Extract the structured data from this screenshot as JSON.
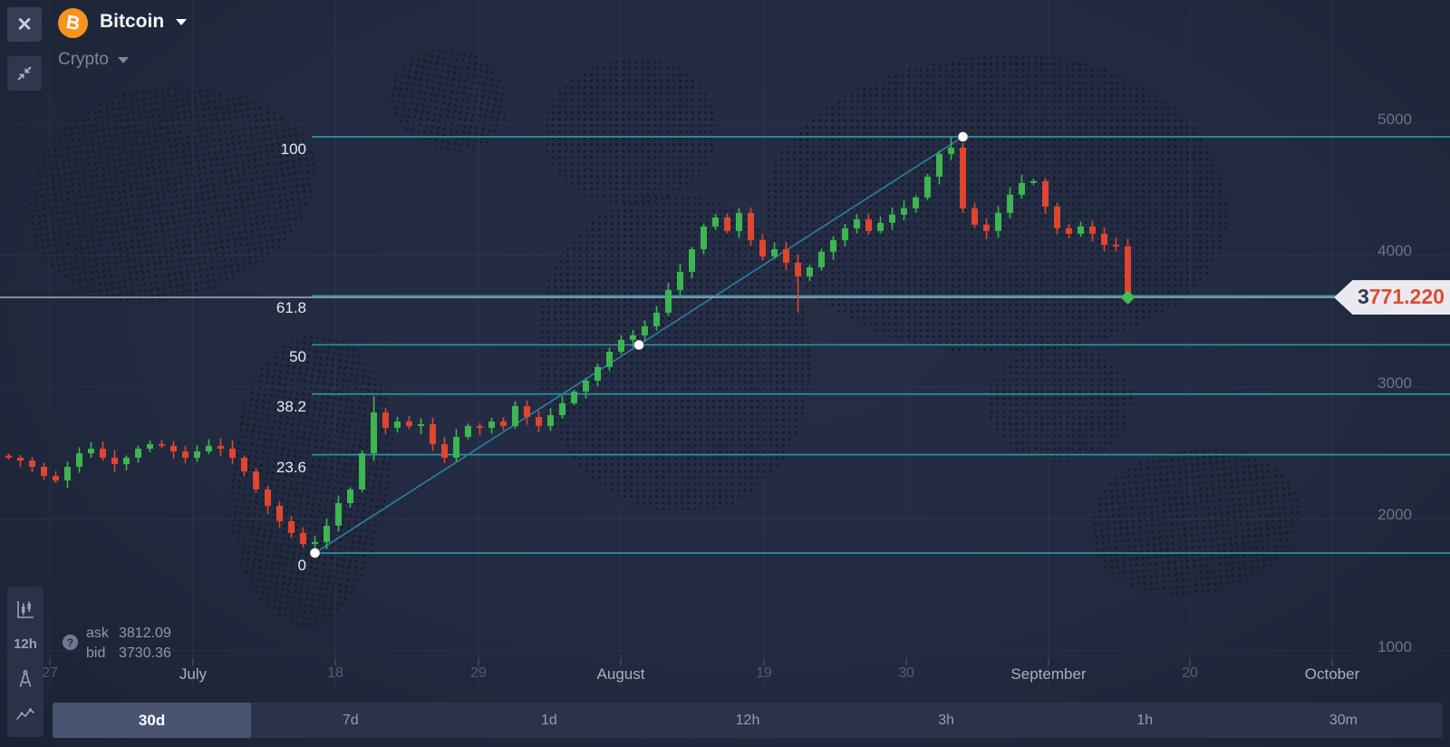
{
  "header": {
    "symbol": "Bitcoin",
    "category": "Crypto",
    "close_label": "✕",
    "coin_glyph": "B"
  },
  "quote": {
    "ask_label": "ask",
    "ask_value": "3812.09",
    "bid_label": "bid",
    "bid_value": "3730.36",
    "help_glyph": "?"
  },
  "price_badge": {
    "prefix": "3",
    "value": "771.220"
  },
  "tool_strip": {
    "interval_label": "12h"
  },
  "timeframes": [
    {
      "label": "30d",
      "selected": true
    },
    {
      "label": "7d",
      "selected": false
    },
    {
      "label": "1d",
      "selected": false
    },
    {
      "label": "12h",
      "selected": false
    },
    {
      "label": "3h",
      "selected": false
    },
    {
      "label": "1h",
      "selected": false
    },
    {
      "label": "30m",
      "selected": false
    }
  ],
  "colors": {
    "candle_up": "#3cb650",
    "candle_down": "#df452f",
    "fib_line": "#2c98ac",
    "trend_line": "#2c7fa0",
    "price_line": "#c2c9d8",
    "diamond": "#3fbe54",
    "accent_orange": "#f7941d",
    "badge_value": "#df4b33"
  },
  "chart_data": {
    "type": "candlestick",
    "title": "Bitcoin price with Fibonacci retracement",
    "candle_interval": "12h",
    "grid": true,
    "price_axis": {
      "ticks": [
        5000,
        4000,
        3000,
        2000,
        1000
      ],
      "min": 1000,
      "max": 5200
    },
    "time_axis": {
      "labels": [
        {
          "text": "27",
          "major": false
        },
        {
          "text": "July",
          "major": true
        },
        {
          "text": "18",
          "major": false
        },
        {
          "text": "29",
          "major": false
        },
        {
          "text": "August",
          "major": true
        },
        {
          "text": "19",
          "major": false
        },
        {
          "text": "30",
          "major": false
        },
        {
          "text": "September",
          "major": true
        },
        {
          "text": "20",
          "major": false
        },
        {
          "text": "October",
          "major": true
        }
      ]
    },
    "fibonacci": {
      "levels": [
        {
          "label": "100",
          "price": 4897
        },
        {
          "label": "61.8",
          "price": 3692
        },
        {
          "label": "50",
          "price": 3320
        },
        {
          "label": "38.2",
          "price": 2947
        },
        {
          "label": "23.6",
          "price": 2487
        },
        {
          "label": "0",
          "price": 1742
        }
      ],
      "trend": {
        "from_candle": 26,
        "from_price": 1742,
        "to_candle": 81,
        "to_price": 4897
      }
    },
    "last_price_line": 3680,
    "candles": {
      "first_open": 2480,
      "closes": [
        2464,
        2443,
        2395,
        2327,
        2292,
        2395,
        2498,
        2533,
        2464,
        2416,
        2464,
        2533,
        2567,
        2554,
        2512,
        2464,
        2512,
        2554,
        2533,
        2464,
        2361,
        2224,
        2100,
        1983,
        1894,
        1811,
        1825,
        1949,
        2120,
        2224,
        2498,
        2808,
        2691,
        2739,
        2705,
        2718,
        2567,
        2464,
        2622,
        2705,
        2691,
        2739,
        2705,
        2856,
        2773,
        2705,
        2787,
        2877,
        2966,
        3048,
        3152,
        3268,
        3358,
        3392,
        3461,
        3564,
        3736,
        3873,
        4045,
        4217,
        4286,
        4183,
        4320,
        4114,
        3990,
        4045,
        3942,
        3839,
        3908,
        4025,
        4114,
        4203,
        4272,
        4183,
        4245,
        4307,
        4355,
        4437,
        4595,
        4767,
        4815,
        4355,
        4231,
        4183,
        4320,
        4458,
        4547,
        4561,
        4368,
        4203,
        4162,
        4217,
        4162,
        4079,
        4066,
        3680
      ],
      "special_wicks": {
        "26": {
          "low": 1735
        },
        "31": {
          "high": 2932
        },
        "67": {
          "low": 3564
        },
        "80": {
          "high": 4897
        },
        "95": {
          "low": 3640
        }
      }
    }
  }
}
